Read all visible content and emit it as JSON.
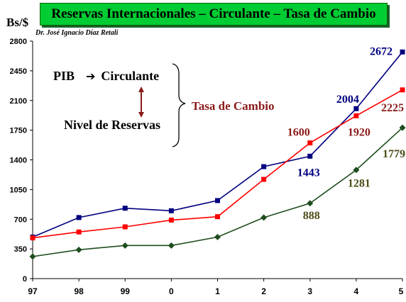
{
  "title": "Reservas Internacionales – Circulante – Tasa de Cambio",
  "unit_label": "Bs/$",
  "author": "Dr. José Ignacio Díaz Retali",
  "annotations": {
    "pib": "PIB",
    "circulante": "Circulante",
    "nivel_reservas": "Nivel de Reservas",
    "tasa_cambio": "Tasa de Cambio"
  },
  "colors": {
    "title_bg": "#00cc33",
    "navy_series": "#000080",
    "red_series": "#ff0000",
    "green_series": "#1e4d1e",
    "tasa_text": "#8b1a1a"
  },
  "chart_data": {
    "type": "line",
    "categories": [
      "97",
      "98",
      "99",
      "0",
      "1",
      "2",
      "3",
      "4",
      "5"
    ],
    "ylim": [
      0,
      2800
    ],
    "yticks": [
      0,
      350,
      700,
      1050,
      1400,
      1750,
      2100,
      2450,
      2800
    ],
    "xlabel": "",
    "ylabel": "Bs/$",
    "series": [
      {
        "key": "navy",
        "color": "#000080",
        "marker": "square",
        "values": [
          490,
          720,
          830,
          800,
          920,
          1320,
          1443,
          2004,
          2672
        ],
        "labels": [
          null,
          null,
          null,
          null,
          null,
          null,
          "1443",
          "2004",
          "2672"
        ]
      },
      {
        "key": "red",
        "color": "#ff0000",
        "marker": "square",
        "values": [
          480,
          550,
          610,
          690,
          730,
          1170,
          1600,
          1920,
          2225
        ],
        "labels": [
          null,
          null,
          null,
          null,
          null,
          null,
          "1600",
          "1920",
          "2225"
        ]
      },
      {
        "key": "green",
        "color": "#1e4d1e",
        "marker": "diamond",
        "values": [
          260,
          340,
          390,
          390,
          490,
          720,
          888,
          1281,
          1779
        ],
        "labels": [
          null,
          null,
          null,
          null,
          null,
          null,
          "888",
          "1281",
          "1779"
        ]
      }
    ],
    "value_label_colors": {
      "1443": "#000080",
      "2004": "#000080",
      "2672": "#000080",
      "1600": "#8b1a1a",
      "1920": "#8b1a1a",
      "2225": "#8b1a1a",
      "888": "#4d4d1a",
      "1281": "#4d4d1a",
      "1779": "#4d4d1a"
    }
  }
}
